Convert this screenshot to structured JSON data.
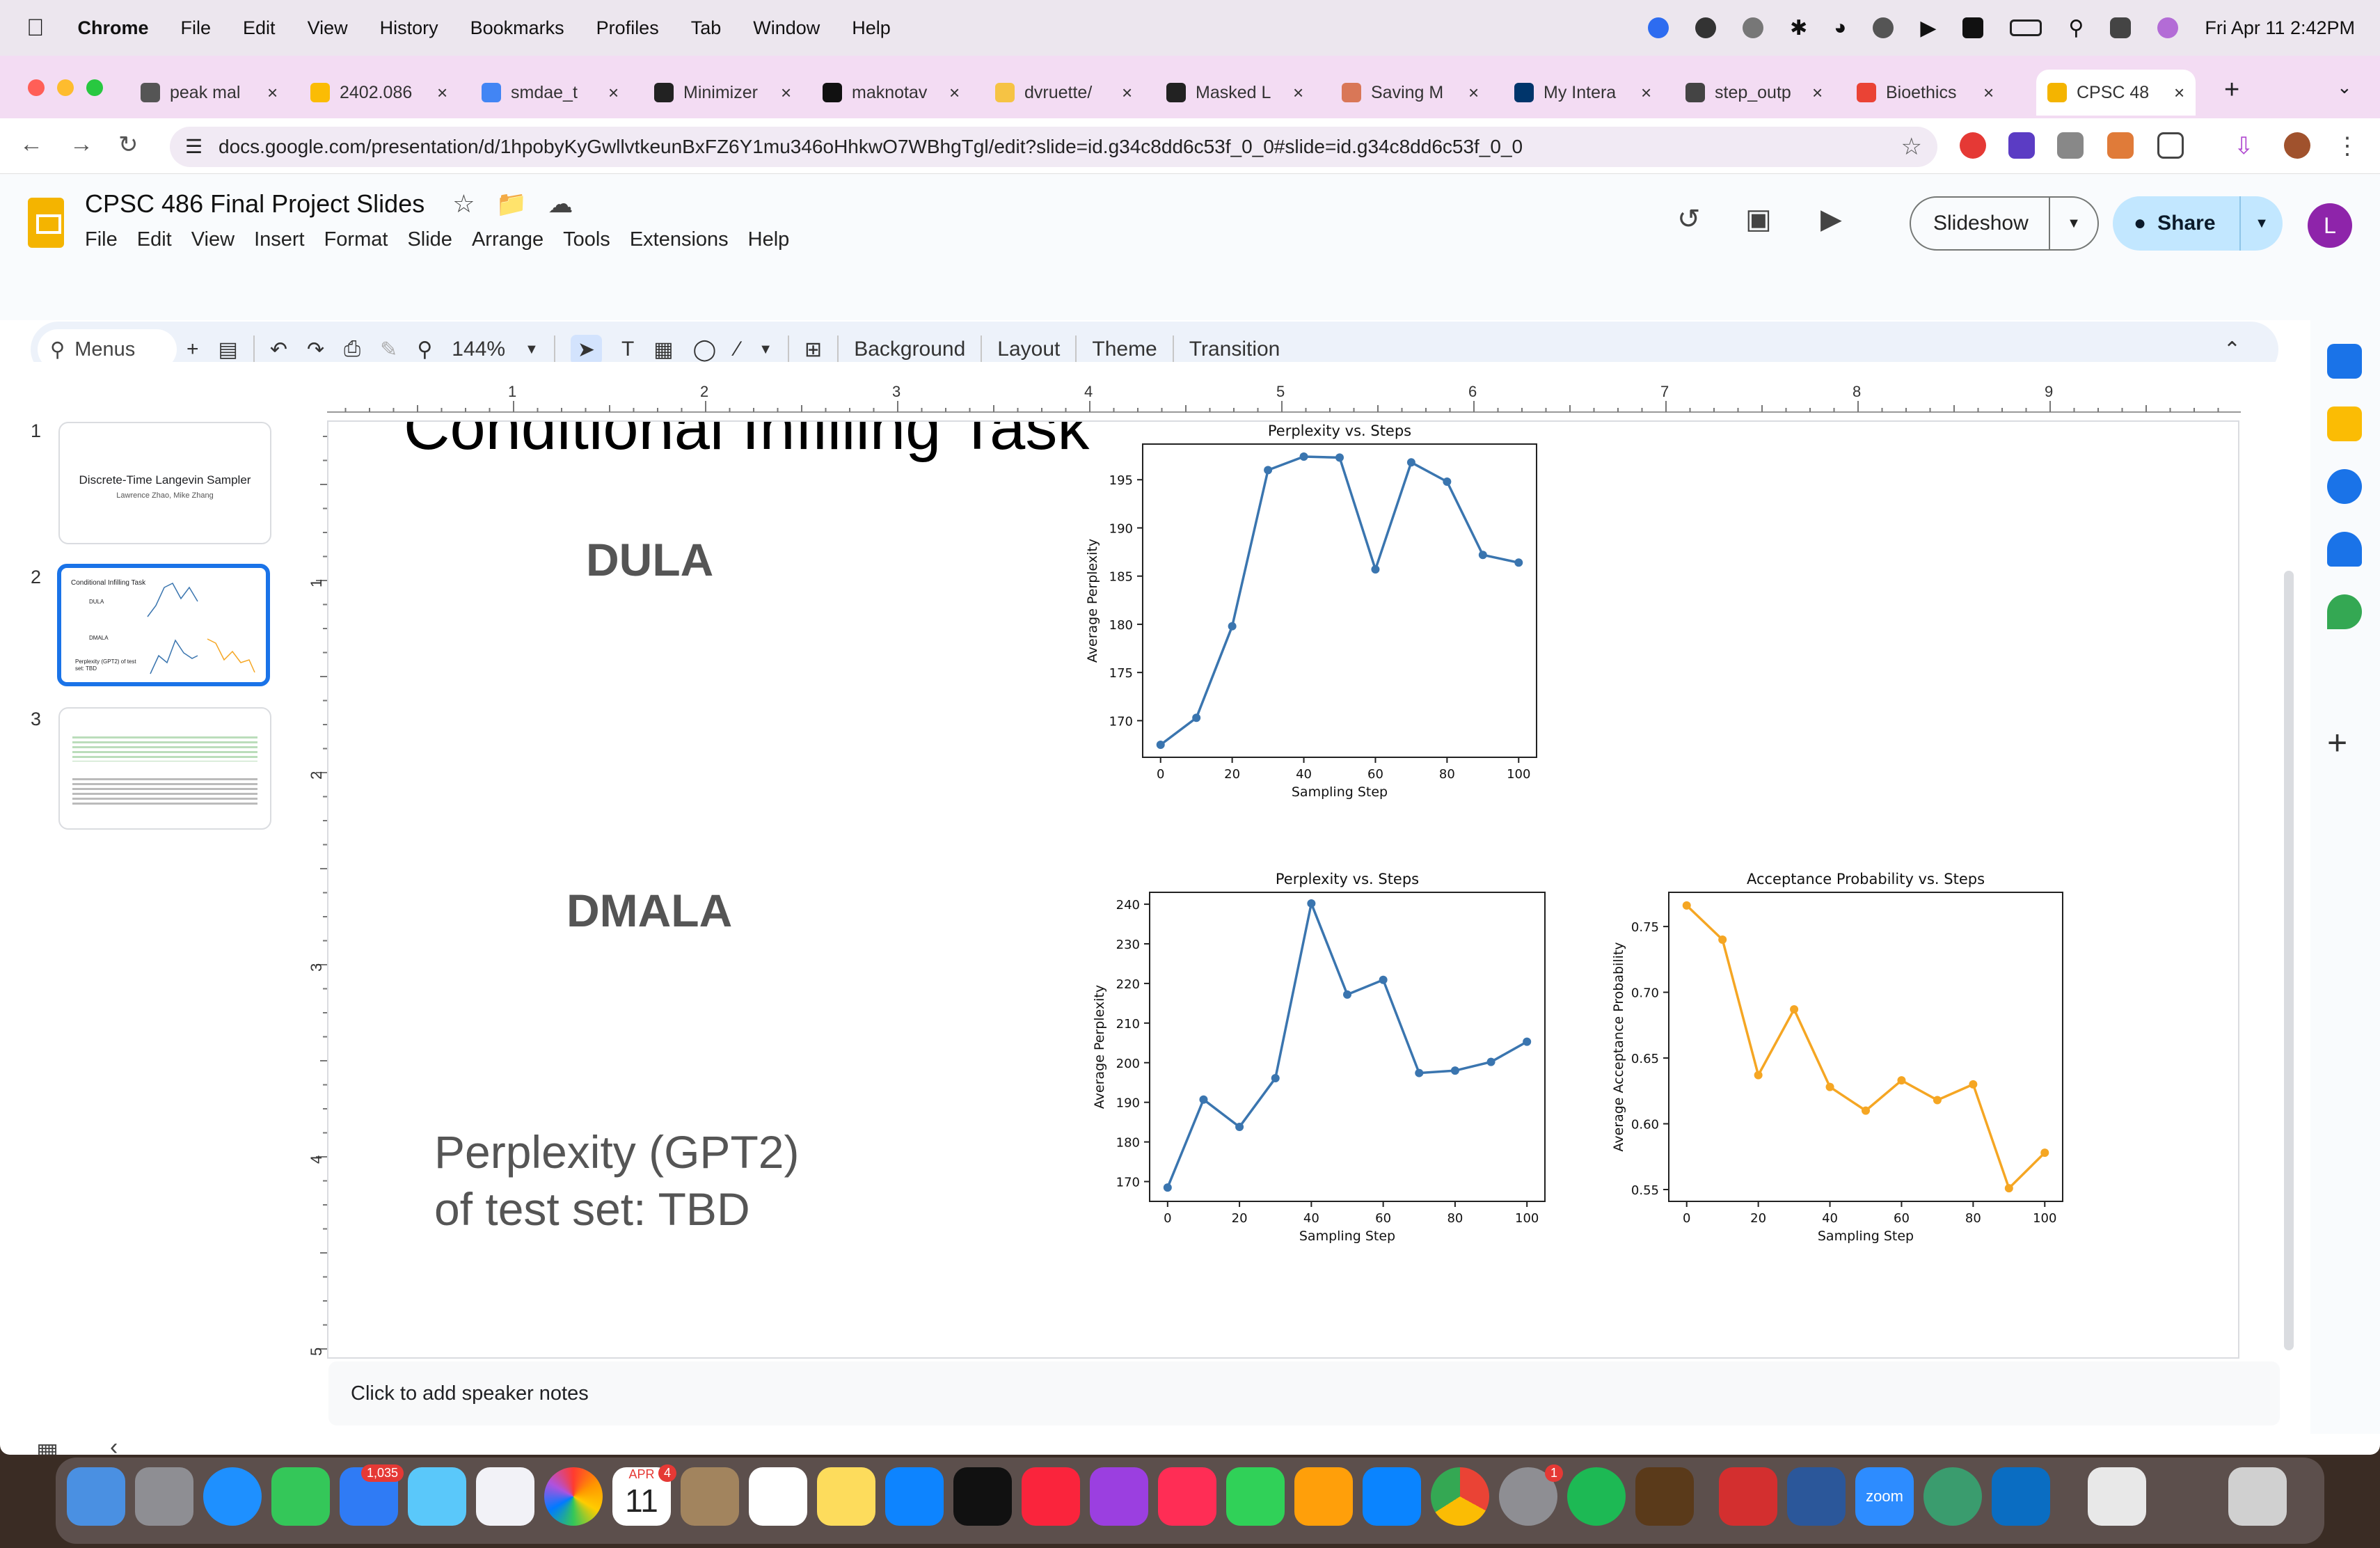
{
  "menubar": {
    "app": "Chrome",
    "items": [
      "File",
      "Edit",
      "View",
      "History",
      "Bookmarks",
      "Profiles",
      "Tab",
      "Window",
      "Help"
    ],
    "clock": "Fri Apr 11  2:42PM"
  },
  "tabs": [
    {
      "label": "peak mal",
      "color": "#555"
    },
    {
      "label": "2402.086",
      "color": "#fbbc04"
    },
    {
      "label": "smdae_t",
      "color": "#4285f4"
    },
    {
      "label": "Minimizer",
      "color": "#222"
    },
    {
      "label": "maknotav",
      "color": "#111"
    },
    {
      "label": "dvruette/",
      "color": "#f6c344"
    },
    {
      "label": "Masked L",
      "color": "#222"
    },
    {
      "label": "Saving M",
      "color": "#d97757"
    },
    {
      "label": "My Intera",
      "color": "#00356b"
    },
    {
      "label": "step_outp",
      "color": "#444"
    },
    {
      "label": "Bioethics",
      "color": "#ea4335"
    },
    {
      "label": "CPSC 48",
      "color": "#f4b400"
    }
  ],
  "address": {
    "url": "docs.google.com/presentation/d/1hpobyKyGwllvtkeunBxFZ6Y1mu346oHhkwO7WBhgTgl/edit?slide=id.g34c8dd6c53f_0_0#slide=id.g34c8dd6c53f_0_0"
  },
  "doc": {
    "title": "CPSC 486 Final Project Slides",
    "menu": [
      "File",
      "Edit",
      "View",
      "Insert",
      "Format",
      "Slide",
      "Arrange",
      "Tools",
      "Extensions",
      "Help"
    ],
    "slideshow": "Slideshow",
    "share": "Share",
    "avatar": "L"
  },
  "toolbar": {
    "menus": "Menus",
    "zoom": "144%",
    "background": "Background",
    "layout": "Layout",
    "theme": "Theme",
    "transition": "Transition"
  },
  "filmstrip": {
    "nums": [
      "1",
      "2",
      "3"
    ],
    "slide1_title": "Discrete-Time Langevin Sampler",
    "slide1_sub": "Lawrence Zhao, Mike Zhang",
    "slide2_title": "Conditional Infilling Task",
    "slide2_dula": "DULA",
    "slide2_dmala": "DMALA",
    "slide2_ppl": "Perplexity (GPT2) of test set: TBD"
  },
  "ruler": {
    "h": [
      "1",
      "2",
      "3",
      "4",
      "5",
      "6",
      "7",
      "8",
      "9"
    ],
    "v": [
      "1",
      "2",
      "3",
      "4",
      "5"
    ]
  },
  "slide": {
    "title": "Conditional Infilling Task",
    "dula": "DULA",
    "dmala": "DMALA",
    "ppl_line1": "Perplexity (GPT2)",
    "ppl_line2": "of test set: TBD"
  },
  "chart_data": [
    {
      "type": "line",
      "title": "Perplexity vs. Steps",
      "xlabel": "Sampling Step",
      "ylabel": "Average Perplexity",
      "x": [
        0,
        10,
        20,
        30,
        40,
        50,
        60,
        70,
        80,
        90,
        100
      ],
      "values": [
        167.5,
        170.3,
        179.8,
        196.0,
        197.4,
        197.3,
        185.7,
        196.8,
        194.8,
        187.2,
        186.4
      ],
      "ylim": [
        166.2,
        198.7
      ],
      "xlim": [
        -5,
        105
      ],
      "yticks": [
        170,
        175,
        180,
        185,
        190,
        195
      ],
      "xticks": [
        0,
        20,
        40,
        60,
        80,
        100
      ],
      "color": "#3a75af"
    },
    {
      "type": "line",
      "title": "Perplexity vs. Steps",
      "xlabel": "Sampling Step",
      "ylabel": "Average Perplexity",
      "x": [
        0,
        10,
        20,
        30,
        40,
        50,
        60,
        70,
        80,
        90,
        100
      ],
      "values": [
        168.5,
        190.7,
        183.8,
        196.1,
        240.2,
        217.2,
        220.9,
        197.4,
        198.0,
        200.2,
        205.3
      ],
      "ylim": [
        165.0,
        243.0
      ],
      "xlim": [
        -5,
        105
      ],
      "yticks": [
        170,
        180,
        190,
        200,
        210,
        220,
        230,
        240
      ],
      "xticks": [
        0,
        20,
        40,
        60,
        80,
        100
      ],
      "color": "#3a75af"
    },
    {
      "type": "line",
      "title": "Acceptance Probability vs. Steps",
      "xlabel": "Sampling Step",
      "ylabel": "Average Acceptance Probability",
      "x": [
        0,
        10,
        20,
        30,
        40,
        50,
        60,
        70,
        80,
        90,
        100
      ],
      "values": [
        0.766,
        0.74,
        0.637,
        0.687,
        0.628,
        0.61,
        0.633,
        0.618,
        0.63,
        0.551,
        0.578
      ],
      "ylim": [
        0.541,
        0.776
      ],
      "xlim": [
        -5,
        105
      ],
      "yticks": [
        0.55,
        0.6,
        0.65,
        0.7,
        0.75
      ],
      "xticks": [
        0,
        20,
        40,
        60,
        80,
        100
      ],
      "color": "#f5a623"
    }
  ],
  "notes": {
    "placeholder": "Click to add speaker notes"
  },
  "dock": {
    "mail_badge": "1,035",
    "cal_month": "APR",
    "cal_day": "11",
    "cal_badge": "4",
    "settings_badge": "1",
    "zoom": "zoom"
  }
}
